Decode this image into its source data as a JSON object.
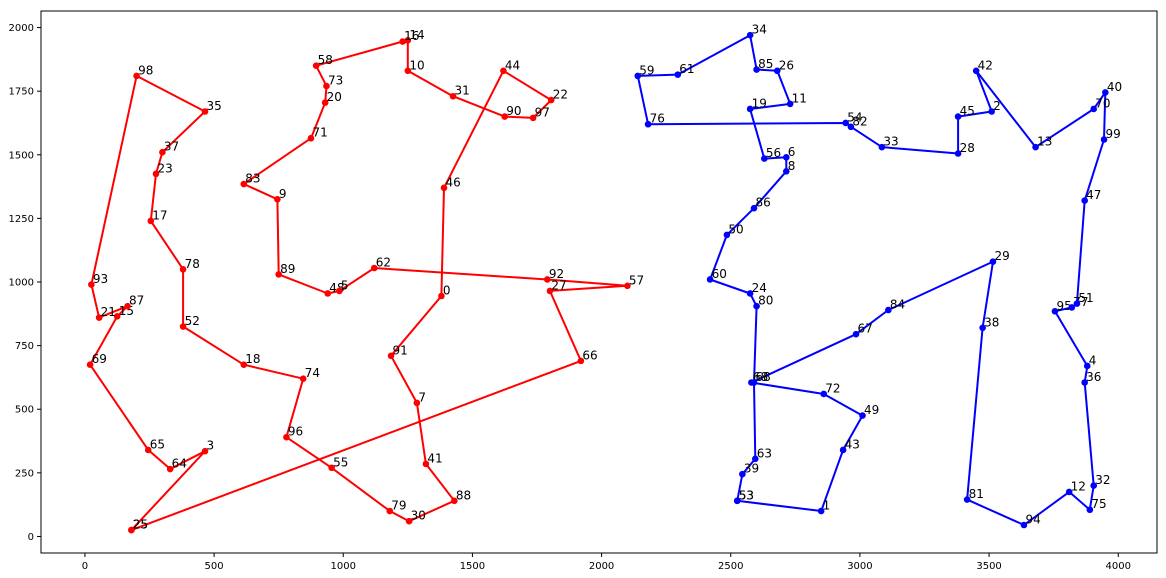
{
  "chart_data": {
    "type": "line",
    "title": "",
    "xlabel": "",
    "ylabel": "",
    "xlim": [
      -170,
      4150
    ],
    "ylim": [
      -65,
      2065
    ],
    "xticks": [
      0,
      500,
      1000,
      1500,
      2000,
      2500,
      3000,
      3500,
      4000
    ],
    "yticks": [
      0,
      250,
      500,
      750,
      1000,
      1250,
      1500,
      1750,
      2000
    ],
    "grid": false,
    "legend": "none",
    "series": [
      {
        "color": "#ff0000",
        "points": [
          {
            "label": "25",
            "x": 180,
            "y": 25
          },
          {
            "label": "3",
            "x": 465,
            "y": 335
          },
          {
            "label": "64",
            "x": 330,
            "y": 265
          },
          {
            "label": "65",
            "x": 245,
            "y": 340
          },
          {
            "label": "69",
            "x": 20,
            "y": 675
          },
          {
            "label": "15",
            "x": 125,
            "y": 865
          },
          {
            "label": "87",
            "x": 165,
            "y": 905
          },
          {
            "label": "21",
            "x": 55,
            "y": 860
          },
          {
            "label": "93",
            "x": 25,
            "y": 990
          },
          {
            "label": "98",
            "x": 200,
            "y": 1810
          },
          {
            "label": "35",
            "x": 465,
            "y": 1670
          },
          {
            "label": "37",
            "x": 300,
            "y": 1510
          },
          {
            "label": "23",
            "x": 275,
            "y": 1425
          },
          {
            "label": "17",
            "x": 255,
            "y": 1240
          },
          {
            "label": "78",
            "x": 380,
            "y": 1050
          },
          {
            "label": "52",
            "x": 380,
            "y": 825
          },
          {
            "label": "18",
            "x": 615,
            "y": 675
          },
          {
            "label": "74",
            "x": 845,
            "y": 620
          },
          {
            "label": "96",
            "x": 780,
            "y": 390
          },
          {
            "label": "55",
            "x": 955,
            "y": 270
          },
          {
            "label": "79",
            "x": 1180,
            "y": 100
          },
          {
            "label": "30",
            "x": 1255,
            "y": 60
          },
          {
            "label": "88",
            "x": 1430,
            "y": 140
          },
          {
            "label": "41",
            "x": 1320,
            "y": 285
          },
          {
            "label": "7",
            "x": 1285,
            "y": 525
          },
          {
            "label": "91",
            "x": 1185,
            "y": 710
          },
          {
            "label": "0",
            "x": 1380,
            "y": 945
          },
          {
            "label": "46",
            "x": 1390,
            "y": 1370
          },
          {
            "label": "44",
            "x": 1620,
            "y": 1830
          },
          {
            "label": "22",
            "x": 1805,
            "y": 1715
          },
          {
            "label": "97",
            "x": 1735,
            "y": 1645
          },
          {
            "label": "90",
            "x": 1625,
            "y": 1650
          },
          {
            "label": "31",
            "x": 1425,
            "y": 1730
          },
          {
            "label": "10",
            "x": 1250,
            "y": 1830
          },
          {
            "label": "14",
            "x": 1250,
            "y": 1950
          },
          {
            "label": "16",
            "x": 1230,
            "y": 1945
          },
          {
            "label": "58",
            "x": 895,
            "y": 1850
          },
          {
            "label": "73",
            "x": 935,
            "y": 1770
          },
          {
            "label": "20",
            "x": 930,
            "y": 1705
          },
          {
            "label": "71",
            "x": 875,
            "y": 1565
          },
          {
            "label": "83",
            "x": 615,
            "y": 1385
          },
          {
            "label": "9",
            "x": 745,
            "y": 1325
          },
          {
            "label": "89",
            "x": 750,
            "y": 1030
          },
          {
            "label": "48",
            "x": 940,
            "y": 955
          },
          {
            "label": "5",
            "x": 985,
            "y": 965
          },
          {
            "label": "62",
            "x": 1120,
            "y": 1055
          },
          {
            "label": "92",
            "x": 1790,
            "y": 1010
          },
          {
            "label": "57",
            "x": 2100,
            "y": 985
          },
          {
            "label": "27",
            "x": 1800,
            "y": 965
          },
          {
            "label": "66",
            "x": 1920,
            "y": 690
          },
          {
            "label": "25",
            "x": 180,
            "y": 25
          }
        ]
      },
      {
        "color": "#0000ff",
        "points": [
          {
            "label": "53",
            "x": 2525,
            "y": 140
          },
          {
            "label": "1",
            "x": 2850,
            "y": 100
          },
          {
            "label": "43",
            "x": 2935,
            "y": 340
          },
          {
            "label": "49",
            "x": 3010,
            "y": 475
          },
          {
            "label": "72",
            "x": 2860,
            "y": 560
          },
          {
            "label": "68",
            "x": 2580,
            "y": 605
          },
          {
            "label": "67",
            "x": 2985,
            "y": 795
          },
          {
            "label": "84",
            "x": 3110,
            "y": 890
          },
          {
            "label": "29",
            "x": 3515,
            "y": 1080
          },
          {
            "label": "38",
            "x": 3475,
            "y": 820
          },
          {
            "label": "81",
            "x": 3415,
            "y": 145
          },
          {
            "label": "94",
            "x": 3635,
            "y": 45
          },
          {
            "label": "12",
            "x": 3810,
            "y": 175
          },
          {
            "label": "75",
            "x": 3890,
            "y": 105
          },
          {
            "label": "32",
            "x": 3905,
            "y": 200
          },
          {
            "label": "36",
            "x": 3870,
            "y": 605
          },
          {
            "label": "4",
            "x": 3880,
            "y": 670
          },
          {
            "label": "95",
            "x": 3755,
            "y": 885
          },
          {
            "label": "77",
            "x": 3820,
            "y": 900
          },
          {
            "label": "51",
            "x": 3840,
            "y": 915
          },
          {
            "label": "47",
            "x": 3870,
            "y": 1320
          },
          {
            "label": "99",
            "x": 3945,
            "y": 1560
          },
          {
            "label": "40",
            "x": 3950,
            "y": 1745
          },
          {
            "label": "70",
            "x": 3905,
            "y": 1680
          },
          {
            "label": "13",
            "x": 3680,
            "y": 1530
          },
          {
            "label": "42",
            "x": 3450,
            "y": 1830
          },
          {
            "label": "2",
            "x": 3510,
            "y": 1670
          },
          {
            "label": "45",
            "x": 3380,
            "y": 1650
          },
          {
            "label": "28",
            "x": 3380,
            "y": 1505
          },
          {
            "label": "33",
            "x": 3085,
            "y": 1530
          },
          {
            "label": "82",
            "x": 2965,
            "y": 1610
          },
          {
            "label": "54",
            "x": 2945,
            "y": 1625
          },
          {
            "label": "76",
            "x": 2180,
            "y": 1620
          },
          {
            "label": "59",
            "x": 2140,
            "y": 1810
          },
          {
            "label": "61",
            "x": 2295,
            "y": 1815
          },
          {
            "label": "34",
            "x": 2575,
            "y": 1970
          },
          {
            "label": "85",
            "x": 2600,
            "y": 1835
          },
          {
            "label": "26",
            "x": 2680,
            "y": 1830
          },
          {
            "label": "11",
            "x": 2730,
            "y": 1700
          },
          {
            "label": "19",
            "x": 2575,
            "y": 1680
          },
          {
            "label": "56",
            "x": 2630,
            "y": 1485
          },
          {
            "label": "6",
            "x": 2715,
            "y": 1490
          },
          {
            "label": "8",
            "x": 2715,
            "y": 1435
          },
          {
            "label": "86",
            "x": 2590,
            "y": 1290
          },
          {
            "label": "50",
            "x": 2485,
            "y": 1185
          },
          {
            "label": "60",
            "x": 2420,
            "y": 1010
          },
          {
            "label": "24",
            "x": 2575,
            "y": 955
          },
          {
            "label": "80",
            "x": 2600,
            "y": 905
          },
          {
            "label": "68",
            "x": 2590,
            "y": 605
          },
          {
            "label": "63",
            "x": 2595,
            "y": 305
          },
          {
            "label": "39",
            "x": 2545,
            "y": 245
          },
          {
            "label": "53",
            "x": 2525,
            "y": 140
          }
        ]
      }
    ]
  }
}
